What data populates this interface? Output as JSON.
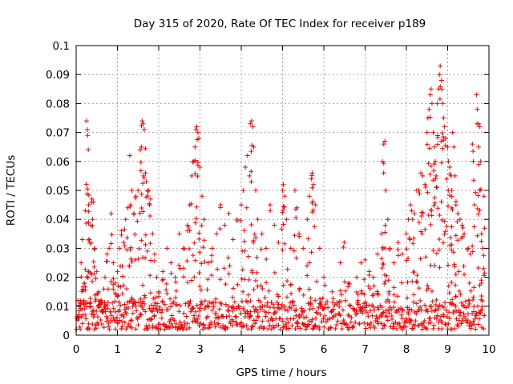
{
  "chart_data": {
    "type": "scatter",
    "title": "Day 315 of 2020, Rate Of TEC Index for receiver p189",
    "xlabel": "GPS time / hours",
    "ylabel": "ROTI / TECUs",
    "xlim": [
      0,
      10
    ],
    "ylim": [
      0,
      0.1
    ],
    "grid": true,
    "x_ticks": [
      0,
      1,
      2,
      3,
      4,
      5,
      6,
      7,
      8,
      9,
      10
    ],
    "x_tick_labels": [
      "0",
      "1",
      "2",
      "3",
      "4",
      "5",
      "6",
      "7",
      "8",
      "9",
      "10"
    ],
    "y_ticks": [
      0,
      0.01,
      0.02,
      0.03,
      0.04,
      0.05,
      0.06,
      0.07,
      0.08,
      0.09,
      0.1
    ],
    "y_tick_labels": [
      "0",
      "0.01",
      "0.02",
      "0.03",
      "0.04",
      "0.05",
      "0.06",
      "0.07",
      "0.08",
      "0.09",
      "0.1"
    ],
    "marker": "+",
    "marker_color": "#ff0000",
    "series": [
      {
        "name": "ROTI",
        "points": [
          [
            0.05,
            0.006
          ],
          [
            0.1,
            0.012
          ],
          [
            0.12,
            0.025
          ],
          [
            0.15,
            0.033
          ],
          [
            0.2,
            0.018
          ],
          [
            0.22,
            0.043
          ],
          [
            0.25,
            0.074
          ],
          [
            0.27,
            0.071
          ],
          [
            0.28,
            0.069
          ],
          [
            0.3,
            0.045
          ],
          [
            0.32,
            0.033
          ],
          [
            0.35,
            0.038
          ],
          [
            0.38,
            0.047
          ],
          [
            0.4,
            0.04
          ],
          [
            0.42,
            0.046
          ],
          [
            0.45,
            0.03
          ],
          [
            0.5,
            0.022
          ],
          [
            0.55,
            0.015
          ],
          [
            0.6,
            0.012
          ],
          [
            0.65,
            0.008
          ],
          [
            0.7,
            0.02
          ],
          [
            0.75,
            0.028
          ],
          [
            0.8,
            0.03
          ],
          [
            0.85,
            0.042
          ],
          [
            0.9,
            0.025
          ],
          [
            0.95,
            0.018
          ],
          [
            1.0,
            0.022
          ],
          [
            1.05,
            0.03
          ],
          [
            1.1,
            0.036
          ],
          [
            1.15,
            0.032
          ],
          [
            1.2,
            0.04
          ],
          [
            1.25,
            0.044
          ],
          [
            1.3,
            0.062
          ],
          [
            1.32,
            0.045
          ],
          [
            1.35,
            0.05
          ],
          [
            1.4,
            0.042
          ],
          [
            1.45,
            0.048
          ],
          [
            1.5,
            0.05
          ],
          [
            1.55,
            0.064
          ],
          [
            1.58,
            0.065
          ],
          [
            1.6,
            0.074
          ],
          [
            1.62,
            0.073
          ],
          [
            1.65,
            0.071
          ],
          [
            1.68,
            0.056
          ],
          [
            1.7,
            0.053
          ],
          [
            1.75,
            0.05
          ],
          [
            1.78,
            0.045
          ],
          [
            1.8,
            0.047
          ],
          [
            1.85,
            0.035
          ],
          [
            1.9,
            0.028
          ],
          [
            1.95,
            0.02
          ],
          [
            2.0,
            0.015
          ],
          [
            2.1,
            0.022
          ],
          [
            2.2,
            0.03
          ],
          [
            2.3,
            0.025
          ],
          [
            2.4,
            0.02
          ],
          [
            2.5,
            0.035
          ],
          [
            2.6,
            0.03
          ],
          [
            2.7,
            0.038
          ],
          [
            2.75,
            0.045
          ],
          [
            2.8,
            0.055
          ],
          [
            2.85,
            0.06
          ],
          [
            2.88,
            0.065
          ],
          [
            2.9,
            0.071
          ],
          [
            2.92,
            0.072
          ],
          [
            2.95,
            0.07
          ],
          [
            2.97,
            0.068
          ],
          [
            3.0,
            0.058
          ],
          [
            3.05,
            0.048
          ],
          [
            3.1,
            0.04
          ],
          [
            3.2,
            0.025
          ],
          [
            3.3,
            0.03
          ],
          [
            3.4,
            0.035
          ],
          [
            3.5,
            0.045
          ],
          [
            3.6,
            0.038
          ],
          [
            3.7,
            0.042
          ],
          [
            3.8,
            0.033
          ],
          [
            3.9,
            0.04
          ],
          [
            4.0,
            0.045
          ],
          [
            4.05,
            0.05
          ],
          [
            4.1,
            0.058
          ],
          [
            4.15,
            0.062
          ],
          [
            4.2,
            0.055
          ],
          [
            4.22,
            0.073
          ],
          [
            4.25,
            0.074
          ],
          [
            4.28,
            0.072
          ],
          [
            4.3,
            0.065
          ],
          [
            4.35,
            0.05
          ],
          [
            4.4,
            0.04
          ],
          [
            4.5,
            0.035
          ],
          [
            4.6,
            0.03
          ],
          [
            4.7,
            0.045
          ],
          [
            4.8,
            0.038
          ],
          [
            4.9,
            0.032
          ],
          [
            5.0,
            0.05
          ],
          [
            5.02,
            0.052
          ],
          [
            5.05,
            0.048
          ],
          [
            5.1,
            0.04
          ],
          [
            5.2,
            0.03
          ],
          [
            5.3,
            0.05
          ],
          [
            5.35,
            0.044
          ],
          [
            5.4,
            0.035
          ],
          [
            5.5,
            0.03
          ],
          [
            5.6,
            0.04
          ],
          [
            5.65,
            0.048
          ],
          [
            5.7,
            0.054
          ],
          [
            5.72,
            0.056
          ],
          [
            5.75,
            0.052
          ],
          [
            5.8,
            0.045
          ],
          [
            5.9,
            0.03
          ],
          [
            6.0,
            0.02
          ],
          [
            6.2,
            0.015
          ],
          [
            6.4,
            0.025
          ],
          [
            6.5,
            0.032
          ],
          [
            6.6,
            0.018
          ],
          [
            6.8,
            0.02
          ],
          [
            6.9,
            0.025
          ],
          [
            7.0,
            0.026
          ],
          [
            7.1,
            0.022
          ],
          [
            7.2,
            0.02
          ],
          [
            7.3,
            0.028
          ],
          [
            7.4,
            0.035
          ],
          [
            7.42,
            0.06
          ],
          [
            7.45,
            0.066
          ],
          [
            7.48,
            0.067
          ],
          [
            7.5,
            0.05
          ],
          [
            7.55,
            0.04
          ],
          [
            7.6,
            0.03
          ],
          [
            7.7,
            0.025
          ],
          [
            7.8,
            0.032
          ],
          [
            7.9,
            0.028
          ],
          [
            8.0,
            0.035
          ],
          [
            8.05,
            0.04
          ],
          [
            8.1,
            0.045
          ],
          [
            8.15,
            0.04
          ],
          [
            8.2,
            0.042
          ],
          [
            8.25,
            0.05
          ],
          [
            8.3,
            0.05
          ],
          [
            8.35,
            0.056
          ],
          [
            8.4,
            0.055
          ],
          [
            8.45,
            0.052
          ],
          [
            8.5,
            0.07
          ],
          [
            8.52,
            0.075
          ],
          [
            8.55,
            0.078
          ],
          [
            8.58,
            0.083
          ],
          [
            8.6,
            0.085
          ],
          [
            8.62,
            0.08
          ],
          [
            8.65,
            0.07
          ],
          [
            8.68,
            0.065
          ],
          [
            8.7,
            0.06
          ],
          [
            8.72,
            0.055
          ],
          [
            8.75,
            0.08
          ],
          [
            8.78,
            0.085
          ],
          [
            8.8,
            0.09
          ],
          [
            8.82,
            0.093
          ],
          [
            8.85,
            0.088
          ],
          [
            8.88,
            0.08
          ],
          [
            8.9,
            0.075
          ],
          [
            8.92,
            0.072
          ],
          [
            8.95,
            0.068
          ],
          [
            9.0,
            0.065
          ],
          [
            9.02,
            0.06
          ],
          [
            9.05,
            0.058
          ],
          [
            9.08,
            0.055
          ],
          [
            9.1,
            0.05
          ],
          [
            9.12,
            0.07
          ],
          [
            9.15,
            0.065
          ],
          [
            9.18,
            0.055
          ],
          [
            9.2,
            0.045
          ],
          [
            9.25,
            0.042
          ],
          [
            9.3,
            0.04
          ],
          [
            9.35,
            0.038
          ],
          [
            9.4,
            0.035
          ],
          [
            9.5,
            0.03
          ],
          [
            9.55,
            0.028
          ],
          [
            9.6,
            0.066
          ],
          [
            9.62,
            0.06
          ],
          [
            9.65,
            0.045
          ],
          [
            9.7,
            0.083
          ],
          [
            9.72,
            0.078
          ],
          [
            9.75,
            0.073
          ],
          [
            9.78,
            0.072
          ],
          [
            9.8,
            0.06
          ],
          [
            9.82,
            0.035
          ],
          [
            9.85,
            0.03
          ],
          [
            9.88,
            0.048
          ]
        ],
        "baseline_band": {
          "description": "dense low-level ROTI values sampled continuously",
          "x_range": [
            0,
            9.9
          ],
          "y_range": [
            0.002,
            0.012
          ]
        }
      }
    ]
  }
}
